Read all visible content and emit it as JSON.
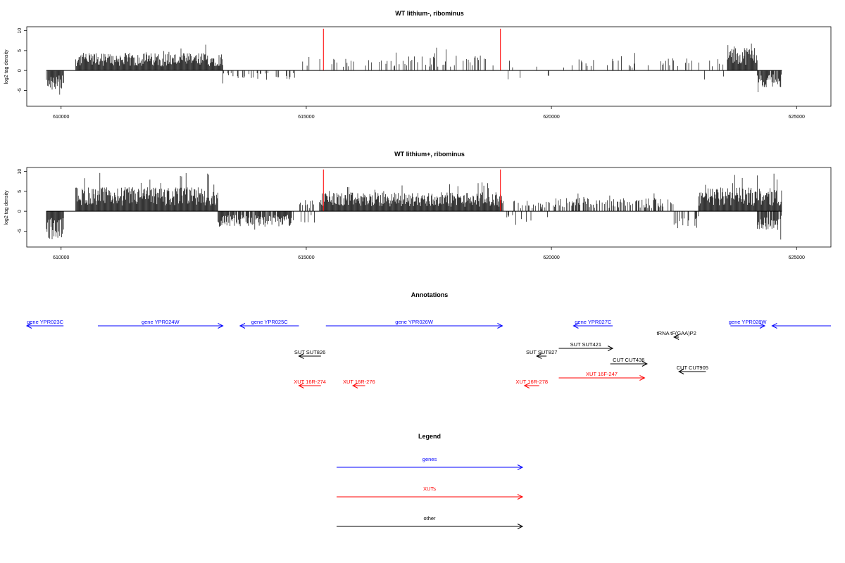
{
  "colors": {
    "gene": "#0000ff",
    "xut": "#ff0000",
    "other": "#000000",
    "bars": "#000000",
    "marker": "#ff0000"
  },
  "chart_data": [
    {
      "type": "bar",
      "title": "WT lithium-, ribominus",
      "ylabel": "log2 tag density",
      "xlim": [
        609300,
        625700
      ],
      "ylim": [
        -9,
        11
      ],
      "x_ticks": [
        610000,
        615000,
        620000,
        625000
      ],
      "x_tick_labels": [
        "610000",
        "615000",
        "620000",
        "625000"
      ],
      "y_ticks": [
        -5,
        0,
        5,
        10
      ],
      "y_tick_labels": [
        "-5",
        "0",
        "5",
        "10"
      ],
      "grid": false,
      "marker_lines_x": [
        615350,
        618960
      ],
      "baseline_range": [
        609700,
        624700
      ],
      "density_regions": [
        {
          "start": 609700,
          "end": 610050,
          "kind": "neg",
          "avg": 3.0,
          "density": 0.9
        },
        {
          "start": 610300,
          "end": 613300,
          "kind": "pos",
          "avg": 2.6,
          "density": 1.0
        },
        {
          "start": 613300,
          "end": 614800,
          "kind": "neg",
          "avg": 1.5,
          "density": 0.25
        },
        {
          "start": 614900,
          "end": 615900,
          "kind": "pos",
          "avg": 1.8,
          "density": 0.15
        },
        {
          "start": 615900,
          "end": 619000,
          "kind": "pos",
          "avg": 2.2,
          "density": 0.22
        },
        {
          "start": 619000,
          "end": 620200,
          "kind": "mixed",
          "avg": 1.5,
          "density": 0.08
        },
        {
          "start": 620200,
          "end": 622800,
          "kind": "pos",
          "avg": 1.8,
          "density": 0.12
        },
        {
          "start": 622800,
          "end": 623600,
          "kind": "mixed",
          "avg": 1.8,
          "density": 0.25
        },
        {
          "start": 623600,
          "end": 624200,
          "kind": "pos",
          "avg": 3.6,
          "density": 1.0
        },
        {
          "start": 624200,
          "end": 624700,
          "kind": "neg",
          "avg": 2.5,
          "density": 0.9
        }
      ]
    },
    {
      "type": "bar",
      "title": "WT lithium+, ribominus",
      "ylabel": "log2 tag density",
      "xlim": [
        609300,
        625700
      ],
      "ylim": [
        -9,
        11
      ],
      "x_ticks": [
        610000,
        615000,
        620000,
        625000
      ],
      "x_tick_labels": [
        "610000",
        "615000",
        "620000",
        "625000"
      ],
      "y_ticks": [
        -5,
        0,
        5,
        10
      ],
      "y_tick_labels": [
        "-5",
        "0",
        "5",
        "10"
      ],
      "grid": false,
      "marker_lines_x": [
        615350,
        618960
      ],
      "baseline_range": [
        609700,
        624700
      ],
      "density_regions": [
        {
          "start": 609700,
          "end": 610050,
          "kind": "neg",
          "avg": 4.2,
          "density": 1.0
        },
        {
          "start": 610300,
          "end": 613200,
          "kind": "pos",
          "avg": 3.6,
          "density": 1.0
        },
        {
          "start": 613200,
          "end": 614700,
          "kind": "neg",
          "avg": 2.3,
          "density": 0.9
        },
        {
          "start": 614700,
          "end": 615300,
          "kind": "mixed",
          "avg": 1.8,
          "density": 0.35
        },
        {
          "start": 615300,
          "end": 619000,
          "kind": "pos",
          "avg": 2.8,
          "density": 1.0
        },
        {
          "start": 619000,
          "end": 620000,
          "kind": "mixed",
          "avg": 1.6,
          "density": 0.35
        },
        {
          "start": 620000,
          "end": 622500,
          "kind": "pos",
          "avg": 2.0,
          "density": 0.45
        },
        {
          "start": 622500,
          "end": 623000,
          "kind": "neg",
          "avg": 2.5,
          "density": 0.3
        },
        {
          "start": 623000,
          "end": 624700,
          "kind": "pos",
          "avg": 3.5,
          "density": 1.0
        },
        {
          "start": 624200,
          "end": 624700,
          "kind": "neg",
          "avg": 2.8,
          "density": 0.9
        }
      ]
    }
  ],
  "annotations": {
    "title": "Annotations",
    "items": [
      {
        "label": "gene YPR023C",
        "kind": "gene",
        "x1": 609300,
        "x2": 610050,
        "dir": "left",
        "row": 0
      },
      {
        "label": "gene YPR024W",
        "kind": "gene",
        "x1": 610750,
        "x2": 613300,
        "dir": "right",
        "row": 0
      },
      {
        "label": "gene YPR025C",
        "kind": "gene",
        "x1": 613650,
        "x2": 614850,
        "dir": "left",
        "row": 0
      },
      {
        "label": "gene YPR026W",
        "kind": "gene",
        "x1": 615400,
        "x2": 619000,
        "dir": "right",
        "row": 0
      },
      {
        "label": "gene YPR027C",
        "kind": "gene",
        "x1": 620450,
        "x2": 621250,
        "dir": "left",
        "row": 0
      },
      {
        "label": "gene YPR028W",
        "kind": "gene",
        "x1": 623650,
        "x2": 624350,
        "dir": "right",
        "row": 0
      },
      {
        "label": "",
        "kind": "gene",
        "x1": 624500,
        "x2": 625700,
        "dir": "left",
        "row": 0
      },
      {
        "label": "tRNA tF(GAA)P2",
        "kind": "other",
        "x1": 622500,
        "x2": 622600,
        "dir": "left",
        "row": 1
      },
      {
        "label": "SUT SUT421",
        "kind": "other",
        "x1": 620150,
        "x2": 621250,
        "dir": "right",
        "row": 2
      },
      {
        "label": "SUT SUT826",
        "kind": "other",
        "x1": 614850,
        "x2": 615300,
        "dir": "left",
        "row": 3
      },
      {
        "label": "SUT SUT827",
        "kind": "other",
        "x1": 619700,
        "x2": 619900,
        "dir": "left",
        "row": 3
      },
      {
        "label": "CUT CUT436",
        "kind": "other",
        "x1": 621200,
        "x2": 621950,
        "dir": "right",
        "row": 4
      },
      {
        "label": "CUT CUT905",
        "kind": "other",
        "x1": 622600,
        "x2": 623150,
        "dir": "left",
        "row": 5
      },
      {
        "label": "XUT 16R-274",
        "kind": "xut",
        "x1": 614850,
        "x2": 615300,
        "dir": "left",
        "row": 6
      },
      {
        "label": "XUT 16R-276",
        "kind": "xut",
        "x1": 615950,
        "x2": 616200,
        "dir": "left",
        "row": 6
      },
      {
        "label": "XUT 16R-278",
        "kind": "xut",
        "x1": 619450,
        "x2": 619750,
        "dir": "left",
        "row": 6
      },
      {
        "label": "XUT 16F-247",
        "kind": "xut",
        "x1": 620150,
        "x2": 621900,
        "dir": "right",
        "row": 7
      }
    ]
  },
  "legend": {
    "title": "Legend",
    "items": [
      {
        "label": "genes",
        "kind": "gene"
      },
      {
        "label": "XUTs",
        "kind": "xut"
      },
      {
        "label": "other",
        "kind": "other"
      }
    ]
  }
}
